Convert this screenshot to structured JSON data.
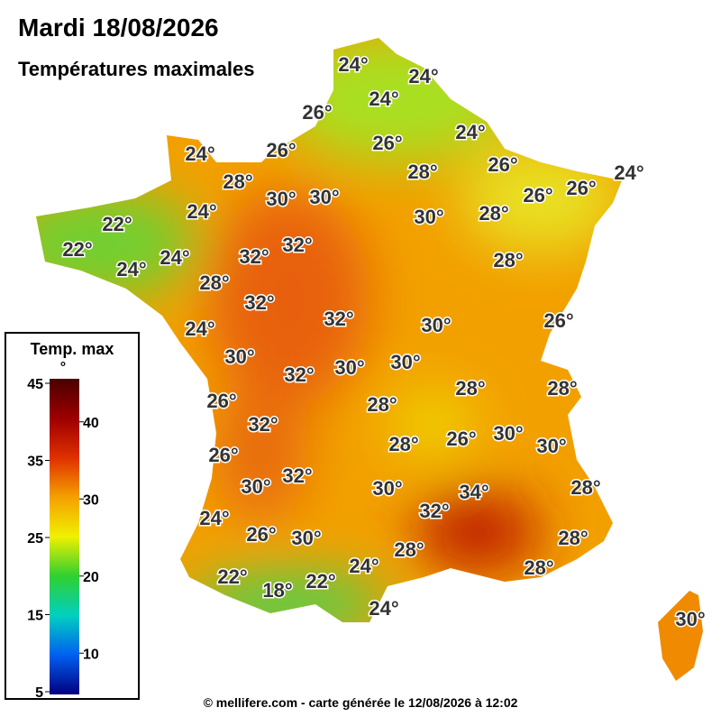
{
  "header": {
    "title": "Mardi 18/08/2026",
    "subtitle": "Températures maximales"
  },
  "labels": [
    "24°",
    "24°",
    "24°",
    "26°",
    "24°",
    "26°",
    "24°",
    "26°",
    "26°",
    "28°",
    "24°",
    "28°",
    "26°",
    "26°",
    "30°",
    "30°",
    "24°",
    "30°",
    "28°",
    "22°",
    "22°",
    "32°",
    "32°",
    "24°",
    "24°",
    "28°",
    "28°",
    "32°",
    "32°",
    "26°",
    "24°",
    "30°",
    "30°",
    "32°",
    "30°",
    "30°",
    "28°",
    "28°",
    "26°",
    "28°",
    "32°",
    "30°",
    "28°",
    "26°",
    "30°",
    "26°",
    "32°",
    "30°",
    "30°",
    "34°",
    "28°",
    "32°",
    "24°",
    "26°",
    "30°",
    "28°",
    "28°",
    "24°",
    "28°",
    "22°",
    "22°",
    "18°",
    "24°",
    "30°"
  ],
  "legend": {
    "title": "Temp. max",
    "unit": "°",
    "ticks": [
      45,
      40,
      35,
      30,
      25,
      20,
      15,
      10,
      5
    ]
  },
  "footer": "© mellifere.com - carte générée le 12/08/2026 à 12:02"
}
